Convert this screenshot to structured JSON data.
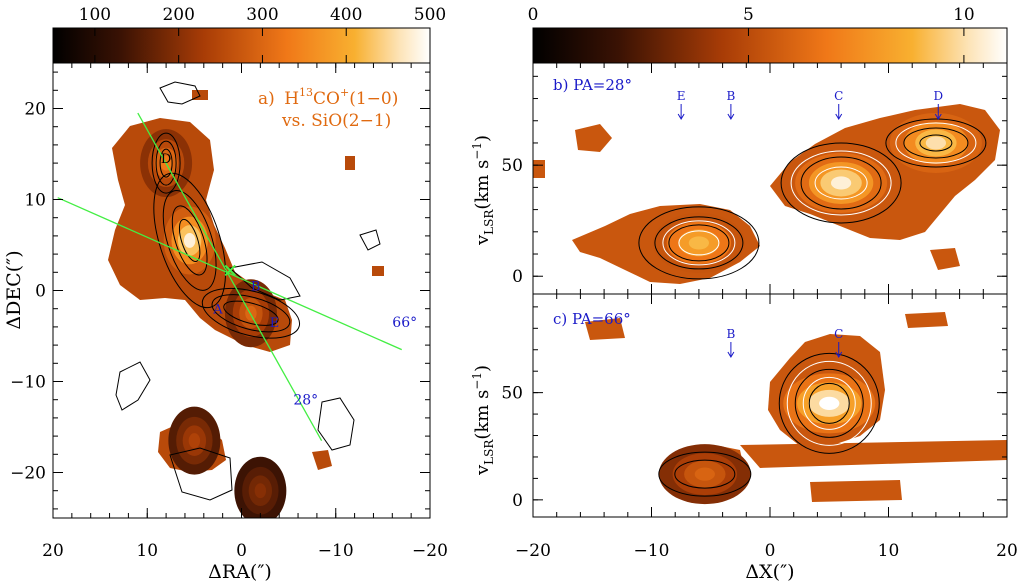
{
  "chart_data": [
    {
      "type": "heatmap",
      "panel_label": "a)",
      "title": {
        "main": "H",
        "sup1": "13",
        "mid": "CO",
        "sup2": "+",
        "end": "(1−0)"
      },
      "subtitle": "vs. SiO(2−1)",
      "xlabel": "ΔRA(″)",
      "ylabel": "ΔDEC(″)",
      "xlim": [
        20,
        -20
      ],
      "ylim": [
        -25,
        25
      ],
      "xticks": [
        20,
        10,
        0,
        -10,
        -20
      ],
      "xtick_labels": [
        "20",
        "10",
        "0",
        "−10",
        "−20"
      ],
      "yticks": [
        20,
        10,
        0,
        -10,
        -20
      ],
      "ytick_labels": [
        "20",
        "10",
        "0",
        "−10",
        "−20"
      ],
      "colorbar": {
        "range": [
          50,
          500
        ],
        "ticks": [
          100,
          200,
          300,
          400,
          500
        ],
        "tick_labels": [
          "100",
          "200",
          "300",
          "400",
          "500"
        ],
        "colormap": "black-orange-white"
      },
      "cuts": [
        {
          "label": "28°",
          "start": [
            11,
            19.5
          ],
          "end": [
            -8.5,
            -16.5
          ]
        },
        {
          "label": "66°",
          "start": [
            19.5,
            10.2
          ],
          "end": [
            -17,
            -6.5
          ]
        }
      ],
      "center": [
        1.2,
        2.2
      ],
      "positions": [
        {
          "label": "D",
          "x": 8,
          "y": 14
        },
        {
          "label": "A",
          "x": 2.5,
          "y": -2.5
        },
        {
          "label": "B",
          "x": -1.5,
          "y": 0
        },
        {
          "label": "E",
          "x": -3.5,
          "y": -4
        }
      ],
      "emission_peaks": [
        {
          "x": 5.5,
          "y": 5.5,
          "value": 480
        },
        {
          "x": 8,
          "y": 14,
          "value": 330
        },
        {
          "x": -1,
          "y": -2.5,
          "value": 300
        },
        {
          "x": 5,
          "y": -16.5,
          "value": 240
        },
        {
          "x": -2,
          "y": -22,
          "value": 200
        }
      ]
    },
    {
      "type": "heatmap",
      "panel_label": "b)",
      "title": "PA=28°",
      "xlabel": "",
      "ylabel": "v_LSR(km s^-1)",
      "xlim": [
        -20,
        20
      ],
      "ylim": [
        -8,
        96
      ],
      "yticks": [
        0,
        50
      ],
      "ytick_labels": [
        "0",
        "50"
      ],
      "colorbar": {
        "range": [
          0,
          11
        ],
        "ticks": [
          0,
          5,
          10
        ],
        "tick_labels": [
          "0",
          "5",
          "10"
        ],
        "colormap": "black-orange-white"
      },
      "markers": [
        {
          "label": "E",
          "x": -7.5
        },
        {
          "label": "B",
          "x": -3.3
        },
        {
          "label": "C",
          "x": 5.8
        },
        {
          "label": "D",
          "x": 14.2
        }
      ],
      "emission_peaks": [
        {
          "x": -6,
          "y": 15,
          "value": 9
        },
        {
          "x": 6,
          "y": 42,
          "value": 10.5
        },
        {
          "x": 14,
          "y": 60,
          "value": 10
        }
      ]
    },
    {
      "type": "heatmap",
      "panel_label": "c)",
      "title": "PA=66°",
      "xlabel": "ΔX(″)",
      "ylabel": "v_LSR(km s^-1)",
      "xlim": [
        -20,
        20
      ],
      "ylim": [
        -8,
        96
      ],
      "xticks": [
        -20,
        -10,
        0,
        10,
        20
      ],
      "xtick_labels": [
        "−20",
        "−10",
        "0",
        "10",
        "20"
      ],
      "yticks": [
        0,
        50
      ],
      "ytick_labels": [
        "0",
        "50"
      ],
      "markers": [
        {
          "label": "B",
          "x": -3.3
        },
        {
          "label": "C",
          "x": 5.8
        }
      ],
      "emission_peaks": [
        {
          "x": 5,
          "y": 45,
          "value": 11
        },
        {
          "x": -5.5,
          "y": 12,
          "value": 6
        }
      ]
    }
  ]
}
